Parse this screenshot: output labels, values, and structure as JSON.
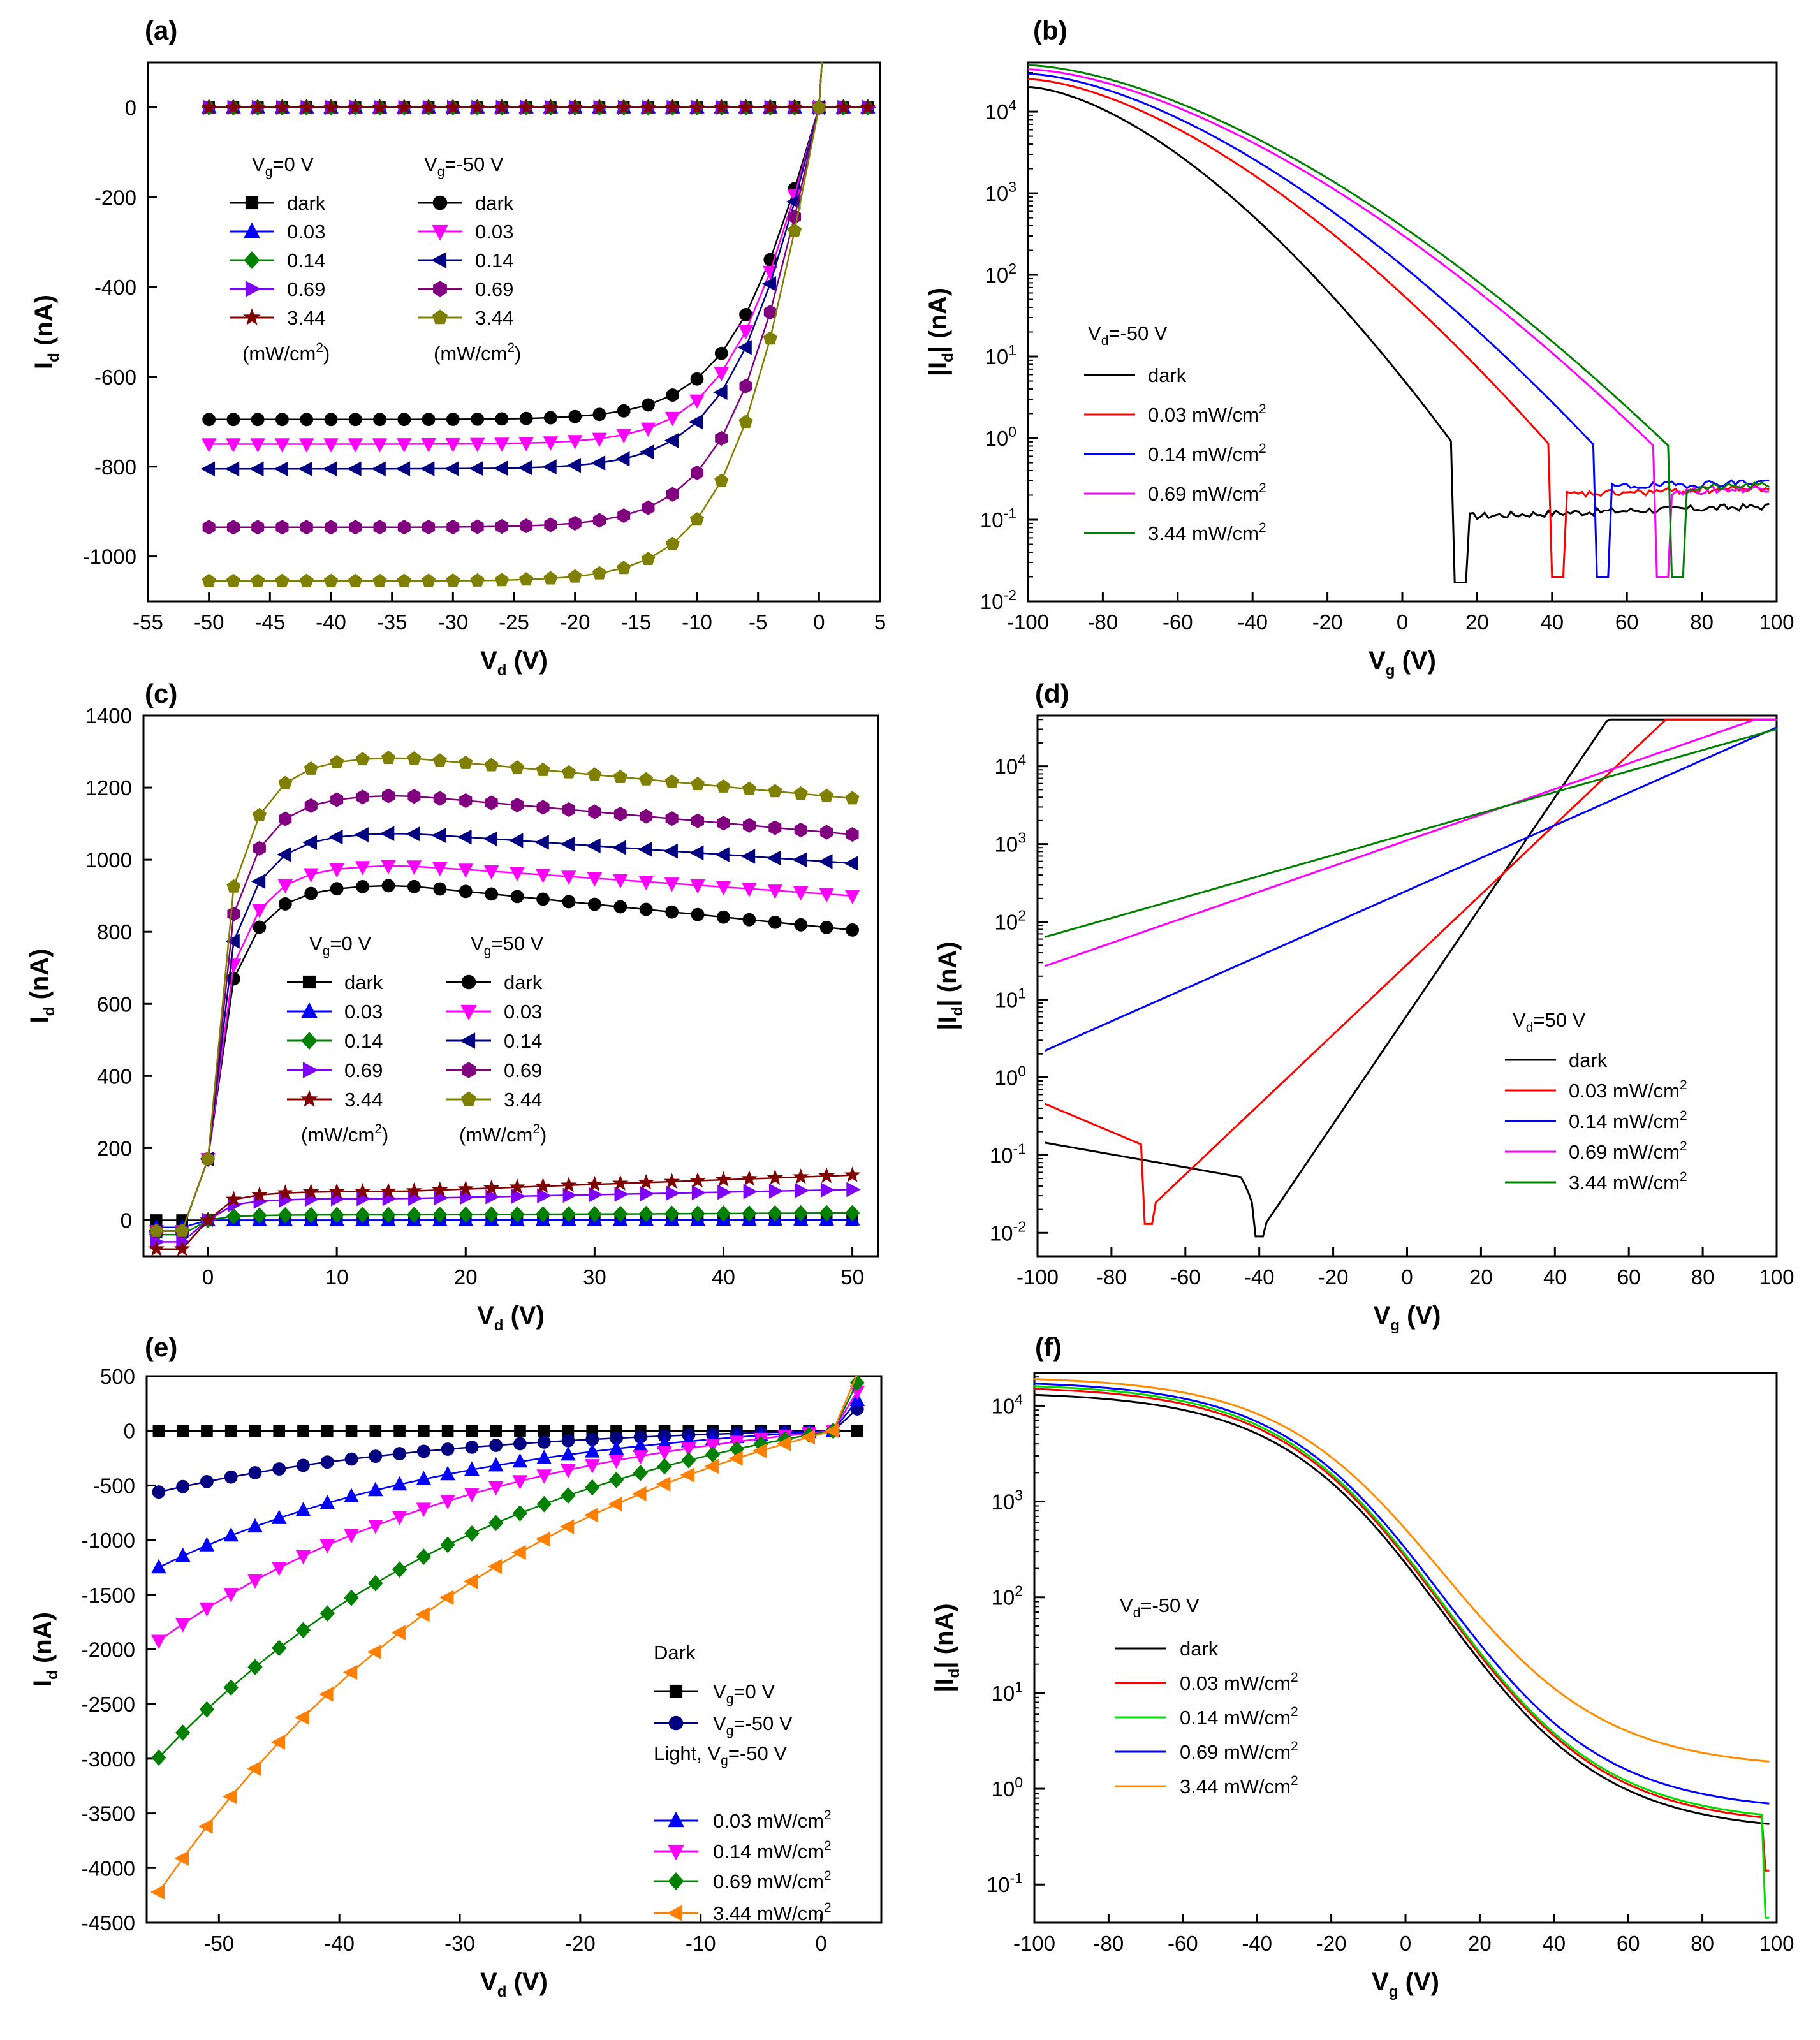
{
  "figure": {
    "panels": [
      "(a)",
      "(b)",
      "(c)",
      "(d)",
      "(e)",
      "(f)"
    ]
  },
  "chart_data": [
    {
      "panel": "(a)",
      "type": "line",
      "xlabel": "V_d (V)",
      "ylabel": "I_d (nA)",
      "xlim": [
        -55,
        5
      ],
      "ylim": [
        -1100,
        100
      ],
      "xticks": [
        -55,
        -50,
        -45,
        -40,
        -35,
        -30,
        -25,
        -20,
        -15,
        -10,
        -5,
        0,
        5
      ],
      "yticks": [
        0,
        -200,
        -400,
        -600,
        -800,
        -1000
      ],
      "legend_title_left": "V_g=0 V",
      "legend_title_right": "V_g=-50 V",
      "legend_unit": "(mW/cm2)",
      "series": [
        {
          "name": "dark",
          "group": "V_g=0 V",
          "color": "#000000",
          "marker": "square",
          "plateau": 0
        },
        {
          "name": "0.03",
          "group": "V_g=0 V",
          "color": "#0000ff",
          "marker": "triangle-up",
          "plateau": 0
        },
        {
          "name": "0.14",
          "group": "V_g=0 V",
          "color": "#008000",
          "marker": "diamond",
          "plateau": 0
        },
        {
          "name": "0.69",
          "group": "V_g=0 V",
          "color": "#8000ff",
          "marker": "triangle-right",
          "plateau": 0
        },
        {
          "name": "3.44",
          "group": "V_g=0 V",
          "color": "#800000",
          "marker": "star",
          "plateau": 0
        },
        {
          "name": "dark",
          "group": "V_g=-50 V",
          "color": "#000000",
          "marker": "circle",
          "plateau": -695
        },
        {
          "name": "0.03",
          "group": "V_g=-50 V",
          "color": "#ff00ff",
          "marker": "triangle-down",
          "plateau": -750
        },
        {
          "name": "0.14",
          "group": "V_g=-50 V",
          "color": "#000080",
          "marker": "triangle-left",
          "plateau": -805
        },
        {
          "name": "0.69",
          "group": "V_g=-50 V",
          "color": "#800080",
          "marker": "hexagon",
          "plateau": -935
        },
        {
          "name": "3.44",
          "group": "V_g=-50 V",
          "color": "#808000",
          "marker": "pentagon",
          "plateau": -1055
        }
      ]
    },
    {
      "panel": "(b)",
      "type": "line",
      "xlabel": "V_g (V)",
      "ylabel": "|I_d| (nA)",
      "yscale": "log",
      "xlim": [
        -100,
        100
      ],
      "ylim": [
        0.01,
        40000
      ],
      "xticks": [
        -100,
        -80,
        -60,
        -40,
        -20,
        0,
        20,
        40,
        60,
        80,
        100
      ],
      "yticks": [
        "10^-2",
        "10^-1",
        "10^0",
        "10^1",
        "10^2",
        "10^3",
        "10^4"
      ],
      "legend_title": "V_d=-50 V",
      "series": [
        {
          "name": "dark",
          "color": "#000000",
          "dip_at": 16,
          "start": 20000,
          "floor": 0.11
        },
        {
          "name": "0.03 mW/cm2",
          "color": "#ff0000",
          "dip_at": 42,
          "start": 25000,
          "floor": 0.2
        },
        {
          "name": "0.14 mW/cm2",
          "color": "#0000ff",
          "dip_at": 54,
          "start": 29000,
          "floor": 0.25
        },
        {
          "name": "0.69 mW/cm2",
          "color": "#ff00ff",
          "dip_at": 70,
          "start": 33000,
          "floor": 0.22
        },
        {
          "name": "3.44 mW/cm2",
          "color": "#008000",
          "dip_at": 74,
          "start": 37000,
          "floor": 0.24
        }
      ]
    },
    {
      "panel": "(c)",
      "type": "line",
      "xlabel": "V_d (V)",
      "ylabel": "I_d (nA)",
      "xlim": [
        -5,
        52
      ],
      "ylim": [
        -100,
        1400
      ],
      "xticks": [
        0,
        10,
        20,
        30,
        40,
        50
      ],
      "yticks": [
        0,
        200,
        400,
        600,
        800,
        1000,
        1200,
        1400
      ],
      "legend_title_left": "V_g=0 V",
      "legend_title_right": "V_g=50 V",
      "legend_unit": "(mW/cm2)",
      "series": [
        {
          "name": "dark",
          "group": "V_g=0 V",
          "color": "#000000",
          "marker": "square",
          "peak": 0,
          "end": 0
        },
        {
          "name": "0.03",
          "group": "V_g=0 V",
          "color": "#0000ff",
          "marker": "triangle-up",
          "peak": 0,
          "end": 2
        },
        {
          "name": "0.14",
          "group": "V_g=0 V",
          "color": "#008000",
          "marker": "diamond",
          "peak": 15,
          "end": 20
        },
        {
          "name": "0.69",
          "group": "V_g=0 V",
          "color": "#8000ff",
          "marker": "triangle-right",
          "peak": 60,
          "end": 85
        },
        {
          "name": "3.44",
          "group": "V_g=0 V",
          "color": "#800000",
          "marker": "star",
          "peak": 80,
          "end": 125
        },
        {
          "name": "dark",
          "group": "V_g=50 V",
          "color": "#000000",
          "marker": "circle",
          "peak": 930,
          "end": 805
        },
        {
          "name": "0.03",
          "group": "V_g=50 V",
          "color": "#ff00ff",
          "marker": "triangle-down",
          "peak": 985,
          "end": 900
        },
        {
          "name": "0.14",
          "group": "V_g=50 V",
          "color": "#000080",
          "marker": "triangle-left",
          "peak": 1075,
          "end": 990
        },
        {
          "name": "0.69",
          "group": "V_g=50 V",
          "color": "#800080",
          "marker": "hexagon",
          "peak": 1180,
          "end": 1070
        },
        {
          "name": "3.44",
          "group": "V_g=50 V",
          "color": "#808000",
          "marker": "pentagon",
          "peak": 1285,
          "end": 1170
        }
      ]
    },
    {
      "panel": "(d)",
      "type": "line",
      "xlabel": "V_g (V)",
      "ylabel": "|I_d| (nA)",
      "yscale": "log",
      "xlim": [
        -100,
        100
      ],
      "ylim": [
        0.005,
        45000
      ],
      "xticks": [
        -100,
        -80,
        -60,
        -40,
        -20,
        0,
        20,
        40,
        60,
        80,
        100
      ],
      "yticks": [
        "10^-2",
        "10^-1",
        "10^0",
        "10^1",
        "10^2",
        "10^3",
        "10^4"
      ],
      "legend_title": "V_d=50 V",
      "series": [
        {
          "name": "dark",
          "color": "#000000"
        },
        {
          "name": "0.03 mW/cm2",
          "color": "#ff0000"
        },
        {
          "name": "0.14 mW/cm2",
          "color": "#0000ff"
        },
        {
          "name": "0.69 mW/cm2",
          "color": "#ff00ff"
        },
        {
          "name": "3.44 mW/cm2",
          "color": "#008000"
        }
      ]
    },
    {
      "panel": "(e)",
      "type": "line",
      "xlabel": "V_d (V)",
      "ylabel": "I_d (nA)",
      "xlim": [
        -56,
        5
      ],
      "ylim": [
        -4500,
        500
      ],
      "xticks": [
        -50,
        -40,
        -30,
        -20,
        -10,
        0
      ],
      "yticks": [
        500,
        0,
        -500,
        -1000,
        -1500,
        -2000,
        -2500,
        -3000,
        -3500,
        -4000,
        -4500
      ],
      "legend_dark": "Dark",
      "legend_light": "Light, V_g=-50 V",
      "series": [
        {
          "name": "V_g=0 V",
          "color": "#000000",
          "marker": "square",
          "start": 0
        },
        {
          "name": "V_g=-50 V",
          "color": "#000080",
          "marker": "circle",
          "start": -560
        },
        {
          "name": "0.03 mW/cm2",
          "color": "#0000ff",
          "marker": "triangle-up",
          "start": -1250
        },
        {
          "name": "0.14 mW/cm2",
          "color": "#ff00ff",
          "marker": "triangle-down",
          "start": -1920
        },
        {
          "name": "0.69 mW/cm2",
          "color": "#008000",
          "marker": "diamond",
          "start": -2990
        },
        {
          "name": "3.44 mW/cm2",
          "color": "#ff8000",
          "marker": "triangle-left",
          "start": -4220
        }
      ]
    },
    {
      "panel": "(f)",
      "type": "line",
      "xlabel": "V_g (V)",
      "ylabel": "|I_d| (nA)",
      "yscale": "log",
      "xlim": [
        -100,
        100
      ],
      "ylim": [
        0.04,
        22000
      ],
      "xticks": [
        -100,
        -80,
        -60,
        -40,
        -20,
        0,
        20,
        40,
        60,
        80,
        100
      ],
      "yticks": [
        "10^-1",
        "10^0",
        "10^1",
        "10^2",
        "10^3",
        "10^4"
      ],
      "legend_title": "V_d=-50 V",
      "series": [
        {
          "name": "dark",
          "color": "#000000"
        },
        {
          "name": "0.03 mW/cm2",
          "color": "#ff0000"
        },
        {
          "name": "0.14 mW/cm2",
          "color": "#00dd00"
        },
        {
          "name": "0.69 mW/cm2",
          "color": "#0000ff"
        },
        {
          "name": "3.44 mW/cm2",
          "color": "#ff8c00"
        }
      ]
    }
  ]
}
